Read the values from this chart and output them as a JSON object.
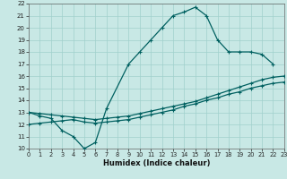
{
  "xlabel": "Humidex (Indice chaleur)",
  "xlim": [
    0,
    23
  ],
  "ylim": [
    10,
    22
  ],
  "xticks": [
    0,
    1,
    2,
    3,
    4,
    5,
    6,
    7,
    8,
    9,
    10,
    11,
    12,
    13,
    14,
    15,
    16,
    17,
    18,
    19,
    20,
    21,
    22,
    23
  ],
  "yticks": [
    10,
    11,
    12,
    13,
    14,
    15,
    16,
    17,
    18,
    19,
    20,
    21,
    22
  ],
  "bg_color": "#c8e8e5",
  "grid_color": "#a0d0cc",
  "line_color": "#006060",
  "curve1_x": [
    0,
    1,
    2,
    3,
    4,
    5,
    6,
    7,
    9,
    10,
    11,
    12,
    13,
    14,
    15,
    16,
    17,
    18,
    19,
    20,
    21,
    22
  ],
  "curve1_y": [
    13,
    12.7,
    12.5,
    11.5,
    11.0,
    10.0,
    10.5,
    13.3,
    17.0,
    18.0,
    19.0,
    20.0,
    21.0,
    21.3,
    21.7,
    21.0,
    19.0,
    18.0,
    18.0,
    18.0,
    17.8,
    17.0
  ],
  "curve2_x": [
    0,
    1,
    2,
    3,
    4,
    5,
    6,
    7,
    8,
    9,
    10,
    11,
    12,
    13,
    14,
    15,
    16,
    17,
    18,
    19,
    20,
    21,
    22,
    23
  ],
  "curve2_y": [
    13.0,
    12.9,
    12.8,
    12.7,
    12.6,
    12.5,
    12.4,
    12.5,
    12.6,
    12.7,
    12.9,
    13.1,
    13.3,
    13.5,
    13.7,
    13.9,
    14.2,
    14.5,
    14.8,
    15.1,
    15.4,
    15.7,
    15.9,
    16.0
  ],
  "curve3_x": [
    0,
    1,
    2,
    3,
    4,
    5,
    6,
    7,
    8,
    9,
    10,
    11,
    12,
    13,
    14,
    15,
    16,
    17,
    18,
    19,
    20,
    21,
    22,
    23
  ],
  "curve3_y": [
    12.0,
    12.1,
    12.2,
    12.3,
    12.4,
    12.2,
    12.1,
    12.2,
    12.3,
    12.4,
    12.6,
    12.8,
    13.0,
    13.2,
    13.5,
    13.7,
    14.0,
    14.2,
    14.5,
    14.7,
    15.0,
    15.2,
    15.4,
    15.5
  ]
}
